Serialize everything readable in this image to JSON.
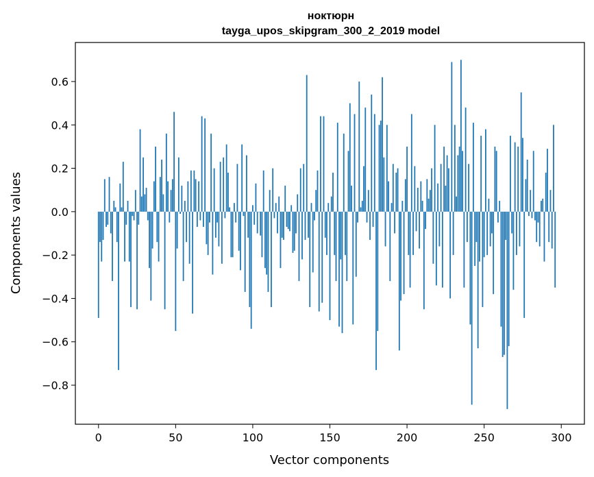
{
  "chart_data": {
    "type": "bar",
    "title": "ноктюрн",
    "subtitle": "tayga_upos_skipgram_300_2_2019 model",
    "xlabel": "Vector components",
    "ylabel": "Components values",
    "xlim": [
      -15,
      315
    ],
    "ylim": [
      -0.98,
      0.78
    ],
    "xticks": [
      0,
      50,
      100,
      150,
      200,
      250,
      300
    ],
    "xtick_labels": [
      "0",
      "50",
      "100",
      "150",
      "200",
      "250",
      "300"
    ],
    "yticks": [
      -0.8,
      -0.6,
      -0.4,
      -0.2,
      0.0,
      0.2,
      0.4,
      0.6
    ],
    "ytick_labels": [
      "−0.8",
      "−0.6",
      "−0.4",
      "−0.2",
      "0.0",
      "0.2",
      "0.4",
      "0.6"
    ],
    "grid": false,
    "bar_color": "#1f77b4",
    "bar_width": 0.8,
    "values": [
      -0.49,
      -0.14,
      -0.23,
      -0.13,
      0.15,
      -0.07,
      -0.06,
      0.16,
      -0.1,
      -0.32,
      0.05,
      0.02,
      -0.14,
      -0.73,
      0.13,
      0.02,
      0.23,
      -0.23,
      -0.06,
      0.05,
      -0.23,
      -0.44,
      -0.02,
      -0.04,
      0.1,
      -0.45,
      -0.06,
      0.38,
      0.07,
      0.25,
      0.08,
      0.11,
      -0.04,
      -0.26,
      -0.41,
      -0.17,
      0.14,
      0.3,
      -0.14,
      -0.23,
      0.16,
      0.24,
      0.08,
      -0.45,
      0.36,
      0.14,
      -0.05,
      0.1,
      0.15,
      0.46,
      -0.55,
      -0.17,
      0.25,
      -0.01,
      0.12,
      -0.32,
      0.05,
      -0.14,
      0.14,
      -0.24,
      0.19,
      -0.47,
      0.19,
      0.15,
      -0.07,
      0.14,
      -0.04,
      0.44,
      -0.07,
      0.43,
      -0.15,
      -0.2,
      -0.05,
      0.36,
      -0.29,
      0.2,
      -0.12,
      -0.05,
      -0.16,
      0.23,
      -0.24,
      0.25,
      -0.03,
      0.31,
      0.18,
      0.02,
      -0.21,
      -0.21,
      0.04,
      -0.05,
      0.22,
      -0.18,
      -0.27,
      0.31,
      -0.02,
      -0.37,
      0.26,
      -0.12,
      -0.44,
      -0.54,
      0.03,
      -0.06,
      0.13,
      -0.1,
      0.0,
      -0.11,
      -0.21,
      0.19,
      -0.26,
      -0.29,
      -0.37,
      0.1,
      -0.44,
      0.2,
      -0.03,
      0.04,
      -0.1,
      0.07,
      -0.26,
      -0.12,
      -0.13,
      0.12,
      -0.07,
      -0.08,
      -0.09,
      0.03,
      -0.19,
      -0.18,
      -0.1,
      0.08,
      -0.32,
      0.2,
      -0.22,
      0.22,
      -0.13,
      0.63,
      -0.12,
      -0.44,
      0.04,
      -0.28,
      -0.04,
      0.1,
      0.19,
      -0.46,
      0.44,
      -0.42,
      0.44,
      -0.12,
      -0.2,
      0.04,
      -0.5,
      0.07,
      0.18,
      -0.2,
      -0.32,
      0.41,
      -0.53,
      -0.22,
      -0.56,
      0.36,
      -0.2,
      -0.32,
      0.28,
      0.5,
      0.12,
      -0.52,
      0.45,
      -0.3,
      -0.05,
      0.6,
      0.02,
      0.05,
      0.21,
      0.48,
      -0.05,
      0.1,
      -0.13,
      0.54,
      -0.07,
      0.45,
      -0.73,
      -0.55,
      0.4,
      0.42,
      0.62,
      0.25,
      -0.16,
      0.4,
      0.14,
      -0.32,
      0.04,
      0.22,
      -0.1,
      0.18,
      0.2,
      -0.64,
      -0.41,
      0.05,
      -0.38,
      0.15,
      0.3,
      -0.2,
      -0.35,
      0.45,
      -0.2,
      0.21,
      -0.09,
      0.11,
      -0.17,
      0.14,
      0.05,
      -0.45,
      -0.08,
      0.15,
      0.06,
      0.1,
      0.2,
      -0.24,
      0.4,
      -0.34,
      0.13,
      -0.16,
      0.22,
      -0.35,
      0.3,
      0.12,
      0.26,
      0.2,
      -0.4,
      0.69,
      -0.2,
      0.4,
      0.07,
      0.26,
      0.3,
      0.7,
      0.28,
      -0.35,
      0.48,
      -0.14,
      0.22,
      -0.52,
      -0.89,
      0.41,
      -0.25,
      -0.14,
      -0.63,
      -0.23,
      0.35,
      -0.44,
      -0.21,
      0.38,
      -0.2,
      0.06,
      -0.16,
      -0.1,
      -0.38,
      0.3,
      0.28,
      -0.05,
      0.05,
      -0.53,
      -0.67,
      -0.66,
      -0.13,
      -0.91,
      -0.62,
      0.35,
      -0.1,
      -0.36,
      0.32,
      -0.2,
      0.3,
      -0.16,
      0.55,
      0.34,
      -0.49,
      0.15,
      0.24,
      -0.02,
      0.1,
      -0.03,
      0.28,
      -0.04,
      -0.14,
      -0.05,
      -0.16,
      0.05,
      0.06,
      -0.23,
      0.18,
      0.29,
      -0.14,
      0.1,
      -0.17,
      0.4,
      -0.35
    ]
  }
}
